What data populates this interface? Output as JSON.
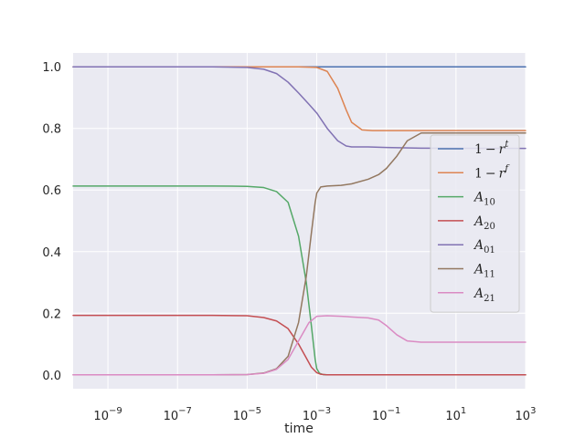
{
  "chart_data": {
    "type": "line",
    "title": "",
    "xlabel": "time",
    "ylabel": "",
    "x_scale": "log",
    "xlim": [
      1e-10,
      1000
    ],
    "ylim": [
      -0.045,
      1.045
    ],
    "grid": true,
    "legend_position": "right",
    "colors": {
      "background": "#eaeaf2",
      "grid": "#ffffff",
      "series": [
        "#4c72b0",
        "#dd8452",
        "#55a868",
        "#c44e52",
        "#8172b3",
        "#937860",
        "#da8bc3"
      ]
    },
    "x_ticks": [
      {
        "value": 1e-09,
        "label": "10",
        "exp": "−9"
      },
      {
        "value": 1e-07,
        "label": "10",
        "exp": "−7"
      },
      {
        "value": 1e-05,
        "label": "10",
        "exp": "−5"
      },
      {
        "value": 0.001,
        "label": "10",
        "exp": "−3"
      },
      {
        "value": 0.1,
        "label": "10",
        "exp": "−1"
      },
      {
        "value": 10.0,
        "label": "10",
        "exp": "1"
      },
      {
        "value": 1000.0,
        "label": "10",
        "exp": "3"
      }
    ],
    "y_ticks": [
      {
        "value": 0.0,
        "label": "0.0"
      },
      {
        "value": 0.2,
        "label": "0.2"
      },
      {
        "value": 0.4,
        "label": "0.4"
      },
      {
        "value": 0.6,
        "label": "0.6"
      },
      {
        "value": 0.8,
        "label": "0.8"
      },
      {
        "value": 1.0,
        "label": "1.0"
      }
    ],
    "series": [
      {
        "name": "1 − r^t",
        "legend": {
          "base": "1",
          "op": "−",
          "var": "r",
          "sup": "t",
          "sub": ""
        },
        "x": [
          1e-10,
          1e-06,
          0.0001,
          0.001,
          0.01,
          1,
          1000
        ],
        "y": [
          1.0,
          1.0,
          1.0,
          1.0,
          1.0,
          1.0,
          1.0
        ]
      },
      {
        "name": "1 − r^f",
        "legend": {
          "base": "1",
          "op": "−",
          "var": "r",
          "sup": "f",
          "sub": ""
        },
        "x": [
          1e-10,
          0.0001,
          0.0003,
          0.001,
          0.002,
          0.004,
          0.007,
          0.01,
          0.02,
          0.04,
          0.1,
          1,
          1000
        ],
        "y": [
          1.0,
          1.0,
          1.0,
          0.998,
          0.985,
          0.93,
          0.86,
          0.82,
          0.795,
          0.793,
          0.793,
          0.793,
          0.793
        ]
      },
      {
        "name": "A_10",
        "legend": {
          "base": "",
          "op": "",
          "var": "A",
          "sup": "",
          "sub": "10"
        },
        "x": [
          1e-10,
          1e-06,
          1e-05,
          3e-05,
          7e-05,
          0.00015,
          0.0003,
          0.0005,
          0.0007,
          0.0009,
          0.001,
          0.0012,
          0.0015,
          0.002,
          0.01,
          1000
        ],
        "y": [
          0.613,
          0.613,
          0.612,
          0.608,
          0.595,
          0.56,
          0.45,
          0.3,
          0.16,
          0.05,
          0.02,
          0.005,
          0.001,
          0.0,
          0.0,
          0.0
        ]
      },
      {
        "name": "A_20",
        "legend": {
          "base": "",
          "op": "",
          "var": "A",
          "sup": "",
          "sub": "20"
        },
        "x": [
          1e-10,
          1e-06,
          1e-05,
          3e-05,
          7e-05,
          0.00015,
          0.0003,
          0.0005,
          0.0007,
          0.001,
          0.0013,
          0.002,
          0.01,
          1000
        ],
        "y": [
          0.193,
          0.193,
          0.192,
          0.186,
          0.175,
          0.15,
          0.1,
          0.055,
          0.025,
          0.007,
          0.002,
          0.0,
          0.0,
          0.0
        ]
      },
      {
        "name": "A_01",
        "legend": {
          "base": "",
          "op": "",
          "var": "A",
          "sup": "",
          "sub": "01"
        },
        "x": [
          1e-10,
          1e-06,
          1e-05,
          3e-05,
          7e-05,
          0.00015,
          0.0003,
          0.0006,
          0.001,
          0.002,
          0.004,
          0.007,
          0.01,
          0.03,
          0.1,
          1,
          1000
        ],
        "y": [
          1.0,
          1.0,
          0.998,
          0.992,
          0.978,
          0.95,
          0.915,
          0.878,
          0.85,
          0.8,
          0.76,
          0.743,
          0.74,
          0.74,
          0.738,
          0.736,
          0.735
        ]
      },
      {
        "name": "A_11",
        "legend": {
          "base": "",
          "op": "",
          "var": "A",
          "sup": "",
          "sub": "11"
        },
        "x": [
          1e-10,
          1e-06,
          1e-05,
          3e-05,
          7e-05,
          0.00015,
          0.0003,
          0.0005,
          0.0007,
          0.0009,
          0.001,
          0.0013,
          0.002,
          0.005,
          0.01,
          0.03,
          0.06,
          0.1,
          0.2,
          0.4,
          1,
          1000
        ],
        "y": [
          0.0,
          0.0,
          0.001,
          0.006,
          0.02,
          0.06,
          0.17,
          0.32,
          0.46,
          0.56,
          0.59,
          0.61,
          0.613,
          0.615,
          0.62,
          0.635,
          0.65,
          0.67,
          0.71,
          0.76,
          0.785,
          0.785
        ]
      },
      {
        "name": "A_21",
        "legend": {
          "base": "",
          "op": "",
          "var": "A",
          "sup": "",
          "sub": "21"
        },
        "x": [
          1e-10,
          1e-06,
          1e-05,
          3e-05,
          7e-05,
          0.00015,
          0.0003,
          0.0006,
          0.001,
          0.002,
          0.005,
          0.01,
          0.03,
          0.06,
          0.1,
          0.2,
          0.4,
          1,
          1000
        ],
        "y": [
          0.0,
          0.0,
          0.001,
          0.005,
          0.018,
          0.05,
          0.11,
          0.17,
          0.19,
          0.192,
          0.19,
          0.188,
          0.185,
          0.178,
          0.16,
          0.13,
          0.11,
          0.106,
          0.106
        ]
      }
    ]
  }
}
